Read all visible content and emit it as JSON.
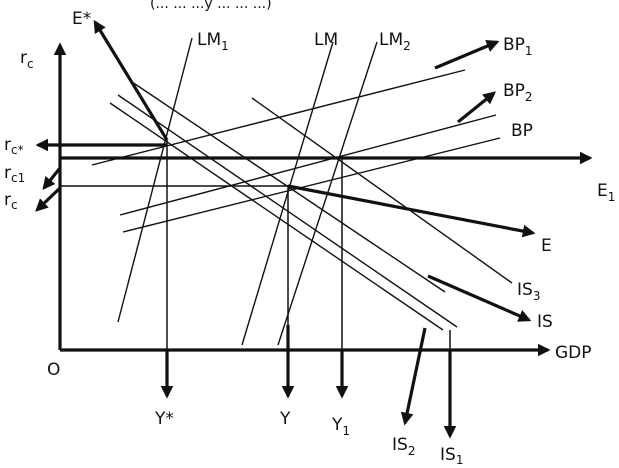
{
  "caption_fragment": "(... ... ...y ... ... ...)",
  "labels": {
    "y_axis": {
      "main": "r",
      "sub": "c"
    },
    "origin": "O",
    "x_axis": "GDP",
    "e_star": "E*",
    "lm1": {
      "main": "LM",
      "sub": "1"
    },
    "lm": "LM",
    "lm2": {
      "main": "LM",
      "sub": "2"
    },
    "bp1": {
      "main": "BP",
      "sub": "1"
    },
    "bp2": {
      "main": "BP",
      "sub": "2"
    },
    "bp": "BP",
    "e1": {
      "main": "E",
      "sub": "1"
    },
    "e": "E",
    "is3": {
      "main": "IS",
      "sub": "3"
    },
    "is": "IS",
    "is2": {
      "main": "IS",
      "sub": "2"
    },
    "is1": {
      "main": "IS",
      "sub": "1"
    },
    "rc_star": {
      "main": "r",
      "sub": "c*"
    },
    "rc1": {
      "main": "r",
      "sub": "c1"
    },
    "rc": {
      "main": "r",
      "sub": "c"
    },
    "y_star": "Y*",
    "y": "Y",
    "y1": {
      "main": "Y",
      "sub": "1"
    }
  }
}
